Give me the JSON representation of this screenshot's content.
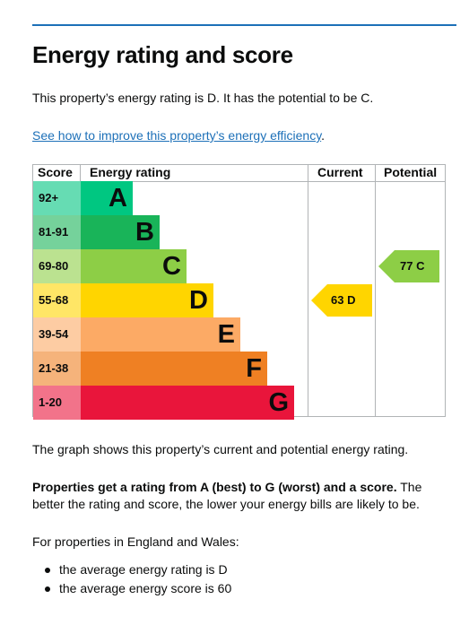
{
  "page": {
    "title": "Energy rating and score",
    "intro": "This property’s energy rating is D. It has the potential to be C.",
    "improve_link": "See how to improve this property’s energy efficiency",
    "improve_link_suffix": ".",
    "graph_description": "The graph shows this property’s current and potential energy rating.",
    "explanation_bold": "Properties get a rating from A (best) to G (worst) and a score.",
    "explanation_rest": " The better the rating and score, the lower your energy bills are likely to be.",
    "regional_intro": "For properties in England and Wales:",
    "bullets": [
      "the average energy rating is D",
      "the average energy score is 60"
    ]
  },
  "chart_data": {
    "type": "bar",
    "headers": {
      "score": "Score",
      "rating": "Energy rating",
      "current": "Current",
      "potential": "Potential"
    },
    "bands": [
      {
        "letter": "A",
        "score_range": "92+",
        "band_color": "#00c781",
        "score_color": "#66dcb3"
      },
      {
        "letter": "B",
        "score_range": "81-91",
        "band_color": "#19b459",
        "score_color": "#75d29b"
      },
      {
        "letter": "C",
        "score_range": "69-80",
        "band_color": "#8dce46",
        "score_color": "#bbe290"
      },
      {
        "letter": "D",
        "score_range": "55-68",
        "band_color": "#ffd500",
        "score_color": "#ffe666"
      },
      {
        "letter": "E",
        "score_range": "39-54",
        "band_color": "#fcaa65",
        "score_color": "#fdcca3"
      },
      {
        "letter": "F",
        "score_range": "21-38",
        "band_color": "#ef8023",
        "score_color": "#f5b37b"
      },
      {
        "letter": "G",
        "score_range": "1-20",
        "band_color": "#e9153b",
        "score_color": "#f2738a"
      }
    ],
    "current": {
      "score": 63,
      "rating": "D",
      "label": "63  D",
      "color": "#ffd500"
    },
    "potential": {
      "score": 77,
      "rating": "C",
      "label": "77  C",
      "color": "#8dce46"
    }
  }
}
